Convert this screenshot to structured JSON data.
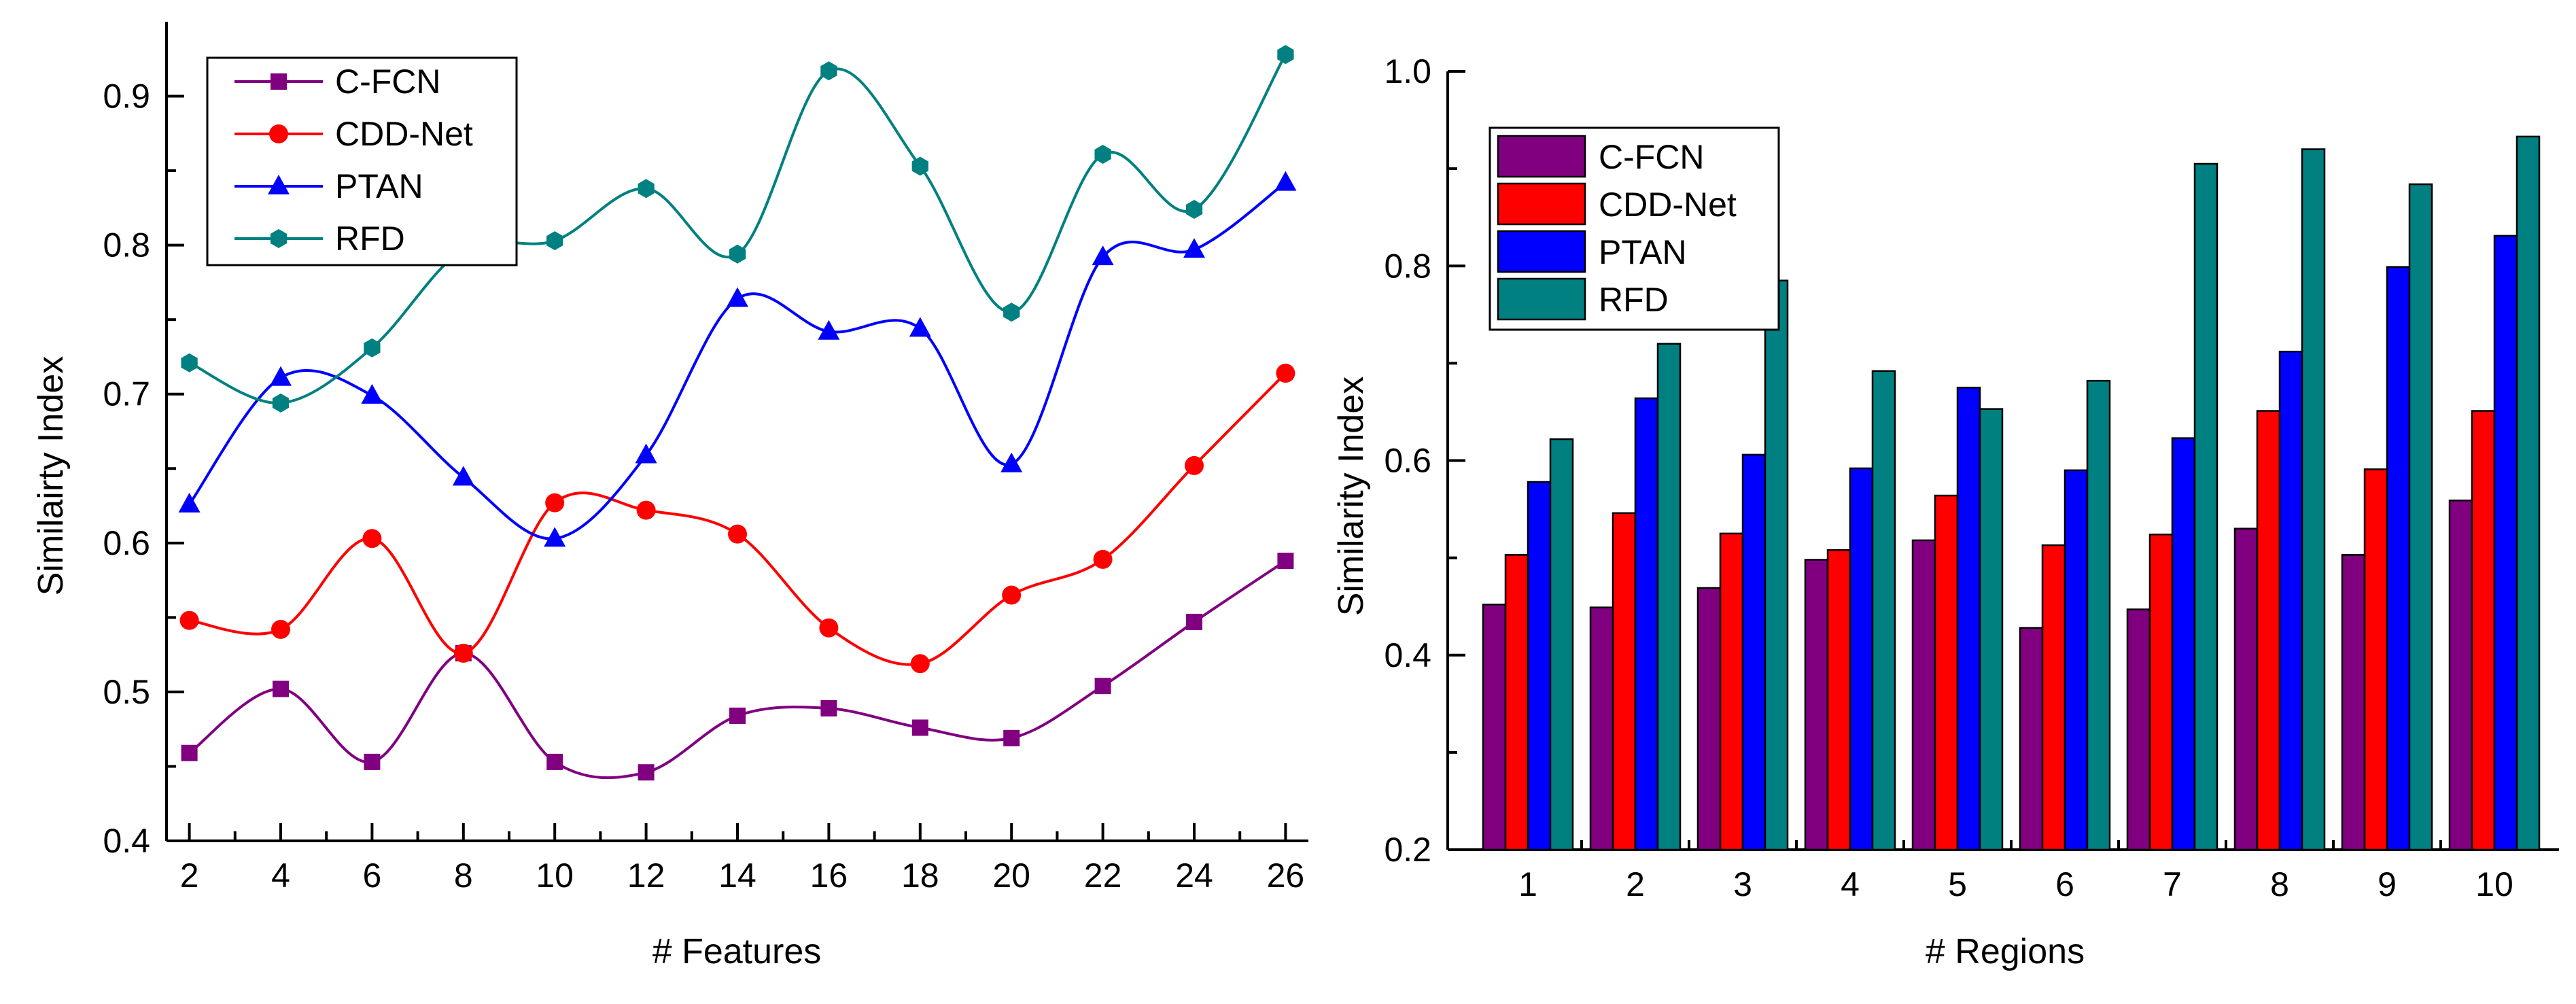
{
  "chart_data": [
    {
      "type": "line",
      "title": "",
      "xlabel": "# Features",
      "ylabel": "Similairty Index",
      "x": [
        2,
        4,
        6,
        8,
        10,
        12,
        14,
        16,
        18,
        20,
        22,
        24,
        26
      ],
      "xlim": [
        1.5,
        26.5
      ],
      "ylim": [
        0.4,
        0.95
      ],
      "yticks": [
        0.4,
        0.5,
        0.6,
        0.7,
        0.8,
        0.9
      ],
      "ytick_labels": [
        "0.4",
        "0.5",
        "0.6",
        "0.7",
        "0.8",
        "0.9"
      ],
      "xtick_labels": [
        "2",
        "4",
        "6",
        "8",
        "10",
        "12",
        "14",
        "16",
        "18",
        "20",
        "22",
        "24",
        "26"
      ],
      "legend_position": "top-left",
      "series": [
        {
          "name": "C-FCN",
          "color": "#800080",
          "marker": "square",
          "values": [
            0.459,
            0.502,
            0.453,
            0.526,
            0.453,
            0.446,
            0.484,
            0.489,
            0.476,
            0.469,
            0.504,
            0.547,
            0.588
          ]
        },
        {
          "name": "CDD-Net",
          "color": "#ff0000",
          "marker": "circle",
          "values": [
            0.548,
            0.542,
            0.603,
            0.526,
            0.627,
            0.622,
            0.606,
            0.543,
            0.519,
            0.565,
            0.589,
            0.652,
            0.714
          ]
        },
        {
          "name": "PTAN",
          "color": "#0000ff",
          "marker": "triangle",
          "values": [
            0.626,
            0.711,
            0.699,
            0.644,
            0.603,
            0.659,
            0.764,
            0.742,
            0.744,
            0.653,
            0.792,
            0.797,
            0.842
          ]
        },
        {
          "name": "RFD",
          "color": "#008080",
          "marker": "hexagon",
          "values": [
            0.721,
            0.694,
            0.731,
            0.797,
            0.803,
            0.838,
            0.794,
            0.917,
            0.853,
            0.755,
            0.861,
            0.824,
            0.928
          ]
        }
      ]
    },
    {
      "type": "bar",
      "title": "",
      "xlabel": "# Regions",
      "ylabel": "Similarity Index",
      "categories": [
        "1",
        "2",
        "3",
        "4",
        "5",
        "6",
        "7",
        "8",
        "9",
        "10"
      ],
      "ylim": [
        0.2,
        1.0
      ],
      "yticks": [
        0.2,
        0.4,
        0.6,
        0.8,
        1.0
      ],
      "ytick_labels": [
        "0.2",
        "0.4",
        "0.6",
        "0.8",
        "1.0"
      ],
      "legend_position": "top-left",
      "series": [
        {
          "name": "C-FCN",
          "color": "#800080",
          "values": [
            0.452,
            0.449,
            0.469,
            0.498,
            0.518,
            0.428,
            0.447,
            0.53,
            0.503,
            0.559
          ]
        },
        {
          "name": "CDD-Net",
          "color": "#ff0000",
          "values": [
            0.503,
            0.546,
            0.525,
            0.508,
            0.564,
            0.513,
            0.524,
            0.651,
            0.591,
            0.651
          ]
        },
        {
          "name": "PTAN",
          "color": "#0000ff",
          "values": [
            0.578,
            0.664,
            0.606,
            0.592,
            0.675,
            0.59,
            0.623,
            0.712,
            0.799,
            0.831
          ]
        },
        {
          "name": "RFD",
          "color": "#008080",
          "values": [
            0.622,
            0.72,
            0.785,
            0.692,
            0.653,
            0.682,
            0.905,
            0.92,
            0.884,
            0.933
          ]
        }
      ]
    }
  ]
}
